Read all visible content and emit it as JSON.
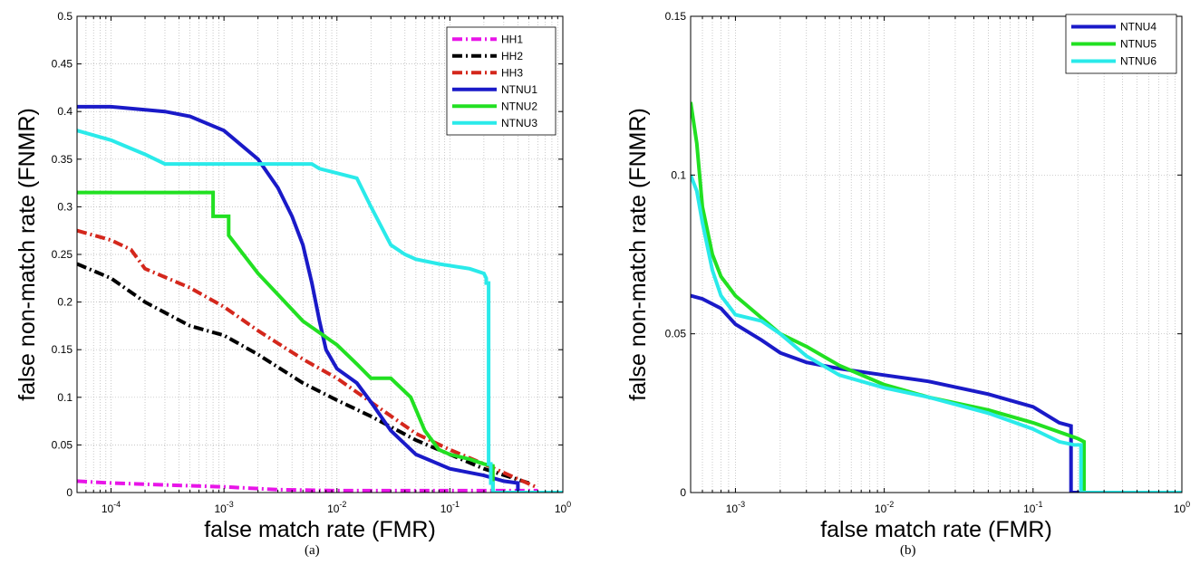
{
  "chart_data": [
    {
      "type": "line",
      "panel_label": "(a)",
      "xlabel": "false match rate (FMR)",
      "ylabel": "false non-match rate (FNMR)",
      "x_scale": "log",
      "xlim": [
        5e-05,
        1
      ],
      "ylim": [
        0,
        0.5
      ],
      "grid": true,
      "legend_position": "top-right",
      "x_ticks": [
        {
          "value": 0.0001,
          "label": "10",
          "exp": "-4"
        },
        {
          "value": 0.001,
          "label": "10",
          "exp": "-3"
        },
        {
          "value": 0.01,
          "label": "10",
          "exp": "-2"
        },
        {
          "value": 0.1,
          "label": "10",
          "exp": "-1"
        },
        {
          "value": 1,
          "label": "10",
          "exp": "0"
        }
      ],
      "y_ticks": [
        {
          "value": 0,
          "label": "0"
        },
        {
          "value": 0.05,
          "label": "0.05"
        },
        {
          "value": 0.1,
          "label": "0.1"
        },
        {
          "value": 0.15,
          "label": "0.15"
        },
        {
          "value": 0.2,
          "label": "0.2"
        },
        {
          "value": 0.25,
          "label": "0.25"
        },
        {
          "value": 0.3,
          "label": "0.3"
        },
        {
          "value": 0.35,
          "label": "0.35"
        },
        {
          "value": 0.4,
          "label": "0.4"
        },
        {
          "value": 0.45,
          "label": "0.45"
        },
        {
          "value": 0.5,
          "label": "0.5"
        }
      ],
      "series": [
        {
          "name": "HH1",
          "color": "#e815e8",
          "style": "dashdot",
          "x": [
            5e-05,
            0.0001,
            0.0003,
            0.001,
            0.003,
            0.01,
            0.1,
            0.6
          ],
          "y": [
            0.012,
            0.01,
            0.008,
            0.006,
            0.003,
            0.002,
            0.002,
            0.002
          ]
        },
        {
          "name": "HH2",
          "color": "#000000",
          "style": "dashdot",
          "x": [
            5e-05,
            0.0001,
            0.0002,
            0.0005,
            0.001,
            0.002,
            0.005,
            0.01,
            0.02,
            0.05,
            0.1,
            0.2,
            0.5
          ],
          "y": [
            0.24,
            0.225,
            0.2,
            0.175,
            0.165,
            0.145,
            0.115,
            0.097,
            0.08,
            0.055,
            0.04,
            0.025,
            0.01
          ]
        },
        {
          "name": "HH3",
          "color": "#d4271c",
          "style": "dashdot",
          "x": [
            5e-05,
            0.0001,
            0.00015,
            0.0002,
            0.0005,
            0.001,
            0.002,
            0.005,
            0.01,
            0.02,
            0.05,
            0.1,
            0.2,
            0.6
          ],
          "y": [
            0.275,
            0.265,
            0.255,
            0.235,
            0.215,
            0.195,
            0.17,
            0.14,
            0.12,
            0.095,
            0.062,
            0.045,
            0.03,
            0.005
          ]
        },
        {
          "name": "NTNU1",
          "color": "#1a1ac8",
          "style": "solid",
          "x": [
            5e-05,
            0.0001,
            0.0003,
            0.0005,
            0.001,
            0.002,
            0.003,
            0.004,
            0.005,
            0.006,
            0.007,
            0.008,
            0.01,
            0.015,
            0.02,
            0.03,
            0.05,
            0.1,
            0.2,
            0.3,
            0.4,
            0.4
          ],
          "y": [
            0.405,
            0.405,
            0.4,
            0.395,
            0.38,
            0.35,
            0.32,
            0.29,
            0.26,
            0.22,
            0.18,
            0.15,
            0.13,
            0.115,
            0.095,
            0.065,
            0.04,
            0.025,
            0.018,
            0.012,
            0.01,
            0
          ]
        },
        {
          "name": "NTNU2",
          "color": "#22e022",
          "style": "solid",
          "x": [
            5e-05,
            0.0008,
            0.0008,
            0.0011,
            0.0011,
            0.002,
            0.005,
            0.01,
            0.015,
            0.02,
            0.03,
            0.045,
            0.06,
            0.08,
            0.1,
            0.15,
            0.2,
            0.24,
            0.24
          ],
          "y": [
            0.315,
            0.315,
            0.29,
            0.29,
            0.27,
            0.23,
            0.18,
            0.155,
            0.135,
            0.12,
            0.12,
            0.1,
            0.065,
            0.045,
            0.04,
            0.035,
            0.03,
            0.028,
            0
          ]
        },
        {
          "name": "NTNU3",
          "color": "#2aeaea",
          "style": "solid",
          "x": [
            5e-05,
            0.0001,
            0.0002,
            0.0003,
            0.001,
            0.006,
            0.007,
            0.015,
            0.02,
            0.03,
            0.04,
            0.05,
            0.08,
            0.15,
            0.2,
            0.21,
            0.21,
            0.22,
            0.22,
            0.23,
            0.23,
            0.24,
            0.24,
            1
          ],
          "y": [
            0.38,
            0.37,
            0.355,
            0.345,
            0.345,
            0.345,
            0.34,
            0.33,
            0.3,
            0.26,
            0.25,
            0.245,
            0.24,
            0.235,
            0.23,
            0.225,
            0.22,
            0.22,
            0.03,
            0.03,
            0.01,
            0.01,
            0,
            0
          ]
        }
      ]
    },
    {
      "type": "line",
      "panel_label": "(b)",
      "xlabel": "false match rate (FMR)",
      "ylabel": "false non-match rate (FNMR)",
      "x_scale": "log",
      "xlim": [
        0.0005,
        1
      ],
      "ylim": [
        0,
        0.15
      ],
      "grid": true,
      "legend_position": "top-right",
      "x_ticks": [
        {
          "value": 0.001,
          "label": "10",
          "exp": "-3"
        },
        {
          "value": 0.01,
          "label": "10",
          "exp": "-2"
        },
        {
          "value": 0.1,
          "label": "10",
          "exp": "-1"
        },
        {
          "value": 1,
          "label": "10",
          "exp": "0"
        }
      ],
      "y_ticks": [
        {
          "value": 0,
          "label": "0"
        },
        {
          "value": 0.05,
          "label": "0.05"
        },
        {
          "value": 0.1,
          "label": "0.1"
        },
        {
          "value": 0.15,
          "label": "0.15"
        }
      ],
      "series": [
        {
          "name": "NTNU4",
          "color": "#1a1ac8",
          "style": "solid",
          "x": [
            0.0005,
            0.0006,
            0.0008,
            0.001,
            0.0015,
            0.002,
            0.003,
            0.005,
            0.01,
            0.02,
            0.05,
            0.1,
            0.15,
            0.18,
            0.18,
            0.19,
            0.19,
            1
          ],
          "y": [
            0.062,
            0.061,
            0.058,
            0.053,
            0.048,
            0.044,
            0.041,
            0.039,
            0.037,
            0.035,
            0.031,
            0.027,
            0.022,
            0.021,
            0,
            0,
            0,
            0
          ]
        },
        {
          "name": "NTNU5",
          "color": "#22e022",
          "style": "solid",
          "x": [
            0.0005,
            0.00055,
            0.0006,
            0.0007,
            0.0008,
            0.001,
            0.0015,
            0.002,
            0.003,
            0.005,
            0.01,
            0.02,
            0.05,
            0.1,
            0.2,
            0.22,
            0.22,
            1
          ],
          "y": [
            0.123,
            0.11,
            0.09,
            0.075,
            0.068,
            0.062,
            0.055,
            0.05,
            0.046,
            0.04,
            0.034,
            0.03,
            0.026,
            0.022,
            0.017,
            0.016,
            0,
            0
          ]
        },
        {
          "name": "NTNU6",
          "color": "#2aeaea",
          "style": "solid",
          "x": [
            0.0005,
            0.00055,
            0.0006,
            0.0007,
            0.0008,
            0.001,
            0.0015,
            0.002,
            0.003,
            0.005,
            0.01,
            0.02,
            0.05,
            0.1,
            0.15,
            0.19,
            0.21,
            0.21,
            1
          ],
          "y": [
            0.1,
            0.095,
            0.085,
            0.07,
            0.062,
            0.056,
            0.054,
            0.05,
            0.043,
            0.037,
            0.033,
            0.03,
            0.025,
            0.02,
            0.016,
            0.015,
            0.015,
            0,
            0
          ]
        }
      ]
    }
  ]
}
